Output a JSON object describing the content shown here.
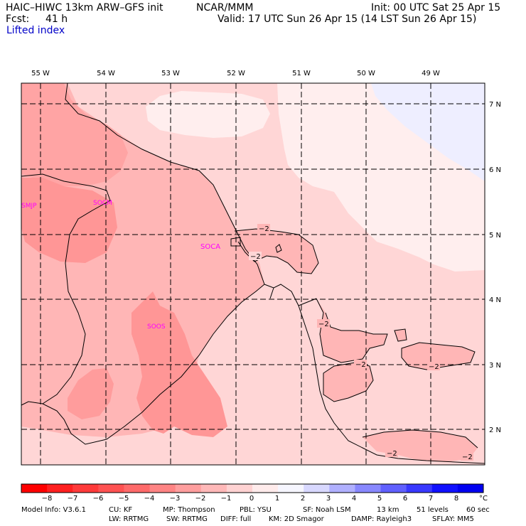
{
  "header": {
    "model": "HAIC–HIWC 13km ARW–GFS init",
    "org": "NCAR/MMM",
    "init": "Init: 00 UTC Sat 25 Apr 15",
    "fcst_label": "Fcst:",
    "fcst_value": "41 h",
    "valid": "Valid: 17 UTC Sun 26 Apr 15 (14 LST Sun 26 Apr 15)",
    "field": "Lifted index"
  },
  "map": {
    "lon_labels": [
      "55 W",
      "54 W",
      "53 W",
      "52 W",
      "51 W",
      "50 W",
      "49 W"
    ],
    "lat_labels": [
      "7 N",
      "6 N",
      "5 N",
      "4 N",
      "3 N",
      "2 N"
    ],
    "stations": [
      "SMJP",
      "SOCM",
      "SOCA",
      "SOOS"
    ],
    "contour_labels": [
      "−2",
      "−2",
      "−2",
      "−2",
      "−2",
      "−2",
      "−2"
    ]
  },
  "colorbar": {
    "ticks": [
      "−8",
      "−7",
      "−6",
      "−5",
      "−4",
      "−3",
      "−2",
      "−1",
      "0",
      "1",
      "2",
      "3",
      "4",
      "5",
      "6",
      "7",
      "8"
    ],
    "unit": "°C",
    "colors": [
      "#ff0000",
      "#ff2020",
      "#ff3a3a",
      "#ff5252",
      "#ff6a6a",
      "#ff8484",
      "#ff9e9e",
      "#ffb8b8",
      "#ffd2d2",
      "#ffebeb",
      "#f6f6ff",
      "#d8d8ff",
      "#b0b0ff",
      "#8888ff",
      "#6060ff",
      "#3838ff",
      "#1010ff",
      "#0000f0"
    ]
  },
  "footer": {
    "line1": [
      "Model Info: V3.6.1",
      "CU: KF",
      "MP: Thompson",
      "PBL: YSU",
      "SF: Noah LSM",
      "13 km",
      "51 levels",
      "60 sec"
    ],
    "line2": [
      "LW: RRTMG",
      "SW: RRTMG",
      "DIFF: full",
      "KM: 2D Smagor",
      "DAMP: Rayleigh3",
      "SFLAY: MM5"
    ]
  }
}
